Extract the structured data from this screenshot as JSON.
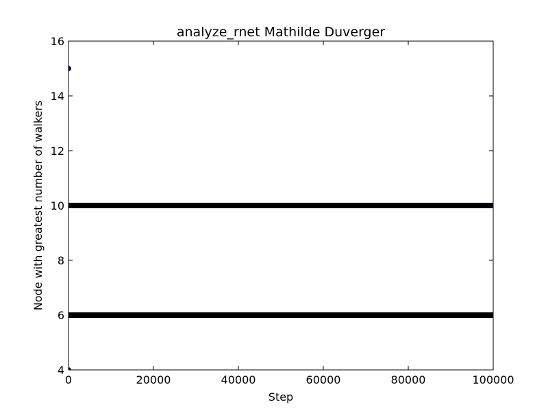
{
  "chart_data": {
    "type": "scatter",
    "title": "analyze_rnet Mathilde Duverger",
    "xlabel": "Step",
    "ylabel": "Node with greatest number of walkers",
    "xlim": [
      0,
      100000
    ],
    "ylim": [
      4,
      16
    ],
    "xticks": [
      0,
      20000,
      40000,
      60000,
      80000,
      100000
    ],
    "yticks": [
      4,
      6,
      8,
      10,
      12,
      14,
      16
    ],
    "grid": false,
    "legend": "none",
    "colors": {
      "marker_fill": "#000080",
      "marker_edge": "#000000"
    },
    "series": [
      {
        "points": [
          [
            0,
            15
          ],
          [
            0,
            4
          ]
        ]
      },
      {
        "dense_ranges": [
          {
            "y": 10,
            "x_start": 0,
            "x_end": 100000
          },
          {
            "y": 6,
            "x_start": 0,
            "x_end": 100000
          }
        ]
      }
    ]
  }
}
